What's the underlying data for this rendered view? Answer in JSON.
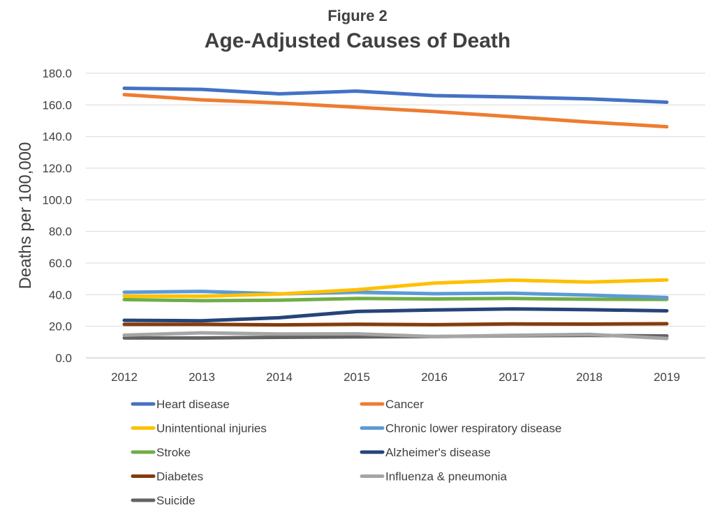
{
  "figure_label": "Figure 2",
  "chart_data": {
    "type": "line",
    "title": "Age-Adjusted Causes of Death",
    "xlabel": "",
    "ylabel": "Deaths per 100,000",
    "ylim": [
      0,
      180
    ],
    "yticks": [
      "0.0",
      "20.0",
      "40.0",
      "60.0",
      "80.0",
      "100.0",
      "120.0",
      "140.0",
      "160.0",
      "180.0"
    ],
    "grid": true,
    "legend_position": "bottom",
    "x": [
      "2012",
      "2013",
      "2014",
      "2015",
      "2016",
      "2017",
      "2018",
      "2019"
    ],
    "series": [
      {
        "name": "Heart disease",
        "color": "#4472C4",
        "values": [
          170.5,
          169.8,
          167.0,
          168.7,
          165.9,
          165.0,
          163.8,
          161.7
        ]
      },
      {
        "name": "Cancer",
        "color": "#ED7D31",
        "values": [
          166.5,
          163.2,
          161.2,
          158.5,
          155.8,
          152.5,
          149.1,
          146.2
        ]
      },
      {
        "name": "Unintentional injuries",
        "color": "#FFC000",
        "values": [
          39.1,
          39.0,
          40.4,
          43.1,
          47.3,
          49.2,
          48.0,
          49.3
        ]
      },
      {
        "name": "Chronic lower respiratory disease",
        "color": "#5B9BD5",
        "values": [
          41.5,
          42.1,
          40.5,
          41.6,
          40.6,
          40.9,
          39.7,
          38.2
        ]
      },
      {
        "name": "Stroke",
        "color": "#70AD47",
        "values": [
          36.9,
          36.2,
          36.5,
          37.6,
          37.3,
          37.6,
          37.1,
          37.0
        ]
      },
      {
        "name": "Alzheimer's disease",
        "color": "#264478",
        "values": [
          23.8,
          23.5,
          25.4,
          29.4,
          30.3,
          31.0,
          30.5,
          29.8
        ]
      },
      {
        "name": "Diabetes",
        "color": "#843C0C",
        "values": [
          21.2,
          21.2,
          20.9,
          21.3,
          21.0,
          21.5,
          21.4,
          21.6
        ]
      },
      {
        "name": "Influenza & pneumonia",
        "color": "#A5A5A5",
        "values": [
          14.4,
          15.9,
          15.1,
          15.2,
          13.5,
          14.3,
          14.9,
          12.3
        ]
      },
      {
        "name": "Suicide",
        "color": "#636363",
        "values": [
          12.6,
          12.6,
          13.0,
          13.3,
          13.5,
          14.0,
          14.2,
          13.9
        ]
      }
    ]
  }
}
